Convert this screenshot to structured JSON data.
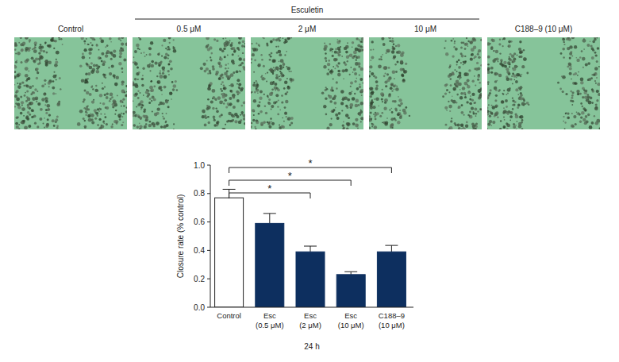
{
  "panels": {
    "group_label": "Esculetin",
    "labels": [
      "Control",
      "0.5 μM",
      "2 μM",
      "10 μM",
      "C188–9 (10 μM)"
    ]
  },
  "chart_data": {
    "type": "bar",
    "categories": [
      "Control",
      "Esc (0.5 μM)",
      "Esc (2 μM)",
      "Esc (10 μM)",
      "C188–9 (10 μM)"
    ],
    "values": [
      0.77,
      0.59,
      0.39,
      0.23,
      0.39
    ],
    "errors": [
      0.06,
      0.07,
      0.04,
      0.02,
      0.045
    ],
    "colors": [
      "#ffffff",
      "#0d2f5f",
      "#0d2f5f",
      "#0d2f5f",
      "#0d2f5f"
    ],
    "y_label": "Closure rate (% control)",
    "x_label": "24 h",
    "ylim": [
      0,
      1
    ],
    "yticks": [
      {
        "value": 0,
        "label": "0.0"
      },
      0.2,
      0.4,
      0.6,
      0.8,
      {
        "value": 1,
        "label": "1.0"
      }
    ],
    "significance": [
      {
        "categories": [
          "Control",
          "Esc (2 μM)"
        ],
        "label": "*"
      },
      {
        "categories": [
          "Control",
          "Esc (10 μM)"
        ],
        "label": "*"
      },
      {
        "categories": [
          "Control",
          "C188–9 (10 μM)"
        ],
        "label": "*"
      }
    ],
    "grid": false
  }
}
